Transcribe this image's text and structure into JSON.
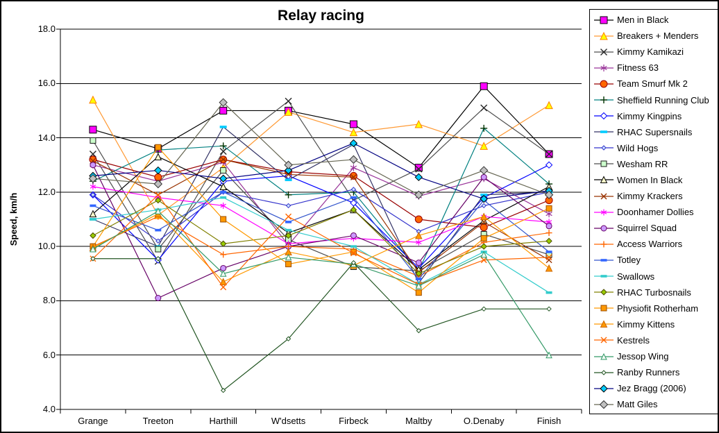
{
  "chart_data": {
    "type": "line",
    "title": "Relay racing",
    "ylabel": "Speed, km/h",
    "ylim": [
      4.0,
      18.0
    ],
    "ytick_step": 2.0,
    "ytick_labels": [
      "18.0",
      "16.0",
      "14.0",
      "12.0",
      "10.0",
      "8.0",
      "6.0",
      "4.0"
    ],
    "grid": "horizontal-black",
    "legend_position": "right",
    "plot_bg": "#ffffff",
    "axis_color": "#000000",
    "categories": [
      "Grange",
      "Treeton",
      "Harthill",
      "W'dsetts",
      "Firbeck",
      "Maltby",
      "O.Denaby",
      "Finish"
    ],
    "series": [
      {
        "name": "Men in Black",
        "slug": "men-in-black",
        "line": "#000000",
        "marker": {
          "shape": "square",
          "size": 10,
          "fill": "#FF00FF",
          "stroke": "#000000"
        },
        "values": [
          14.3,
          13.6,
          15.0,
          15.0,
          14.5,
          12.9,
          15.9,
          13.4
        ]
      },
      {
        "name": "Breakers + Menders",
        "slug": "breakers-menders",
        "line": "#FF9933",
        "marker": {
          "shape": "triangle",
          "size": 10,
          "fill": "#FFFF00",
          "stroke": "#FF8000"
        },
        "values": [
          15.4,
          11.15,
          12.9,
          14.95,
          14.2,
          14.5,
          13.7,
          15.2
        ]
      },
      {
        "name": "Kimmy Kamikazi",
        "slug": "kimmy-kamikazi",
        "line": "#4D4D4D",
        "marker": {
          "shape": "x",
          "size": 9,
          "fill": "none",
          "stroke": "#262626"
        },
        "values": [
          13.4,
          9.45,
          13.5,
          15.35,
          11.7,
          12.85,
          15.1,
          13.4
        ]
      },
      {
        "name": "Fitness 63",
        "slug": "fitness-63",
        "line": "#993399",
        "marker": {
          "shape": "asterisk",
          "size": 10,
          "fill": "none",
          "stroke": "#993399"
        },
        "values": [
          13.0,
          12.4,
          13.1,
          10.05,
          12.9,
          11.85,
          12.5,
          11.2
        ]
      },
      {
        "name": "Team Smurf Mk 2",
        "slug": "team-smurf-mk-2",
        "line": "#990000",
        "marker": {
          "shape": "circle",
          "size": 10,
          "fill": "#FF6600",
          "stroke": "#990000"
        },
        "values": [
          13.2,
          12.55,
          13.2,
          12.75,
          12.6,
          11.0,
          10.7,
          11.7
        ]
      },
      {
        "name": "Sheffield Running Club",
        "slug": "sheffield-running-club",
        "line": "#008080",
        "marker": {
          "shape": "plus",
          "size": 10,
          "fill": "none",
          "stroke": "#003300"
        },
        "values": [
          12.4,
          13.55,
          13.7,
          11.9,
          12.0,
          9.1,
          14.35,
          12.3
        ]
      },
      {
        "name": "Kimmy Kingpins",
        "slug": "kimmy-kingpins",
        "line": "#0000FF",
        "marker": {
          "shape": "diamond",
          "size": 9,
          "fill": "#FFFFFF",
          "stroke": "#0000FF"
        },
        "values": [
          11.9,
          9.5,
          12.4,
          12.6,
          11.6,
          9.2,
          11.8,
          13.0
        ]
      },
      {
        "name": "RHAC Supersnails",
        "slug": "rhac-supersnails",
        "line": "#333366",
        "marker": {
          "shape": "dash",
          "size": 10,
          "fill": "#00CCFF",
          "stroke": "#00CCFF"
        },
        "values": [
          11.0,
          10.0,
          14.4,
          12.45,
          13.75,
          8.65,
          11.9,
          12.0
        ]
      },
      {
        "name": "Wild Hogs",
        "slug": "wild-hogs",
        "line": "#3333CC",
        "marker": {
          "shape": "diamond",
          "size": 6,
          "fill": "#CCE6FF",
          "stroke": "#3333CC"
        },
        "values": [
          11.9,
          10.2,
          12.0,
          11.5,
          12.1,
          10.55,
          11.5,
          12.0
        ]
      },
      {
        "name": "Wesham RR",
        "slug": "wesham-rr",
        "line": "#4D4D4D",
        "marker": {
          "shape": "square",
          "size": 8,
          "fill": "#CCFFCC",
          "stroke": "#1A1A1A"
        },
        "values": [
          13.9,
          9.9,
          12.8,
          10.25,
          9.25,
          9.1,
          10.45,
          9.7
        ]
      },
      {
        "name": "Women In Black",
        "slug": "women-in-black",
        "line": "#000000",
        "marker": {
          "shape": "triangle",
          "size": 9,
          "fill": "#FFFFCC",
          "stroke": "#000000"
        },
        "values": [
          11.2,
          13.3,
          12.2,
          10.5,
          11.35,
          9.15,
          10.95,
          12.2
        ]
      },
      {
        "name": "Kimmy Krackers",
        "slug": "kimmy-krackers",
        "line": "#993300",
        "marker": {
          "shape": "x",
          "size": 8,
          "fill": "none",
          "stroke": "#993300"
        },
        "values": [
          13.15,
          11.9,
          13.2,
          12.65,
          12.55,
          9.05,
          10.9,
          9.5
        ]
      },
      {
        "name": "Doonhamer Dollies",
        "slug": "doonhamer-dollies",
        "line": "#FF00FF",
        "marker": {
          "shape": "asterisk",
          "size": 9,
          "fill": "none",
          "stroke": "#FF00FF"
        },
        "values": [
          12.2,
          11.8,
          11.5,
          10.1,
          10.3,
          10.15,
          11.1,
          10.9
        ]
      },
      {
        "name": "Squirrel Squad",
        "slug": "squirrel-squad",
        "line": "#660066",
        "marker": {
          "shape": "circle",
          "size": 8,
          "fill": "#CC99FF",
          "stroke": "#660066"
        },
        "values": [
          13.0,
          8.1,
          9.2,
          10.0,
          10.4,
          9.4,
          12.55,
          10.75
        ]
      },
      {
        "name": "Access Warriors",
        "slug": "access-warriors",
        "line": "#FF6600",
        "marker": {
          "shape": "plus",
          "size": 9,
          "fill": "none",
          "stroke": "#FF6600"
        },
        "values": [
          10.0,
          11.1,
          9.7,
          10.0,
          9.9,
          8.9,
          10.15,
          10.5
        ]
      },
      {
        "name": "Totley",
        "slug": "totley",
        "line": "#3355CC",
        "marker": {
          "shape": "dash",
          "size": 9,
          "fill": "#3366FF",
          "stroke": "#3366FF"
        },
        "values": [
          11.5,
          10.6,
          12.0,
          10.9,
          11.8,
          8.8,
          11.7,
          9.8
        ]
      },
      {
        "name": "Swallows",
        "slug": "swallows",
        "line": "#33CCCC",
        "marker": {
          "shape": "dash",
          "size": 9,
          "fill": "#33CCCC",
          "stroke": "#33CCCC"
        },
        "values": [
          11.0,
          11.35,
          11.8,
          10.6,
          10.0,
          8.6,
          9.8,
          8.3
        ]
      },
      {
        "name": "RHAC Turbosnails",
        "slug": "rhac-turbosnails",
        "line": "#808000",
        "marker": {
          "shape": "diamond",
          "size": 8,
          "fill": "#99CC00",
          "stroke": "#4D4D00"
        },
        "values": [
          10.4,
          11.7,
          10.1,
          10.4,
          11.35,
          9.0,
          10.0,
          10.2
        ]
      },
      {
        "name": "Physiofit Rotherham",
        "slug": "physiofit-rotherham",
        "line": "#FF9900",
        "marker": {
          "shape": "square",
          "size": 8,
          "fill": "#FF9900",
          "stroke": "#994C00"
        },
        "values": [
          10.0,
          13.65,
          11.0,
          9.35,
          9.8,
          8.3,
          10.3,
          11.4
        ]
      },
      {
        "name": "Kimmy Kittens",
        "slug": "kimmy-kittens",
        "line": "#FF9900",
        "marker": {
          "shape": "triangle",
          "size": 9,
          "fill": "#FF9900",
          "stroke": "#CC6600"
        },
        "values": [
          9.95,
          11.2,
          8.7,
          9.8,
          9.3,
          10.4,
          11.1,
          9.2
        ]
      },
      {
        "name": "Kestrels",
        "slug": "kestrels",
        "line": "#FF6600",
        "marker": {
          "shape": "x",
          "size": 8,
          "fill": "none",
          "stroke": "#FF6600"
        },
        "values": [
          9.55,
          11.9,
          8.5,
          11.1,
          9.75,
          8.6,
          9.5,
          9.6
        ]
      },
      {
        "name": "Jessop Wing",
        "slug": "jessop-wing",
        "line": "#339966",
        "marker": {
          "shape": "triangle",
          "size": 8,
          "fill": "#F0FAF5",
          "stroke": "#339966"
        },
        "values": [
          9.9,
          11.3,
          9.0,
          9.6,
          9.35,
          8.55,
          9.7,
          6.0
        ]
      },
      {
        "name": "Ranby Runners",
        "slug": "ranby-runners",
        "line": "#225522",
        "marker": {
          "shape": "diamond",
          "size": 6,
          "fill": "#FFFFFF",
          "stroke": "#225522"
        },
        "values": [
          9.55,
          9.55,
          4.7,
          6.6,
          9.4,
          6.9,
          7.7,
          7.7
        ]
      },
      {
        "name": "Jez Bragg (2006)",
        "slug": "jez-bragg-2006",
        "line": "#000080",
        "marker": {
          "shape": "diamond",
          "size": 10,
          "fill": "#00CCFF",
          "stroke": "#000000"
        },
        "values": [
          12.6,
          12.8,
          12.5,
          12.8,
          13.8,
          12.55,
          11.75,
          12.05
        ]
      },
      {
        "name": "Matt Giles",
        "slug": "matt-giles",
        "line": "#666652",
        "marker": {
          "shape": "diamond",
          "size": 11,
          "fill": "#C0C0C0",
          "stroke": "#333333"
        },
        "values": [
          12.5,
          12.3,
          15.3,
          13.0,
          13.2,
          11.9,
          12.8,
          11.9
        ]
      }
    ]
  }
}
